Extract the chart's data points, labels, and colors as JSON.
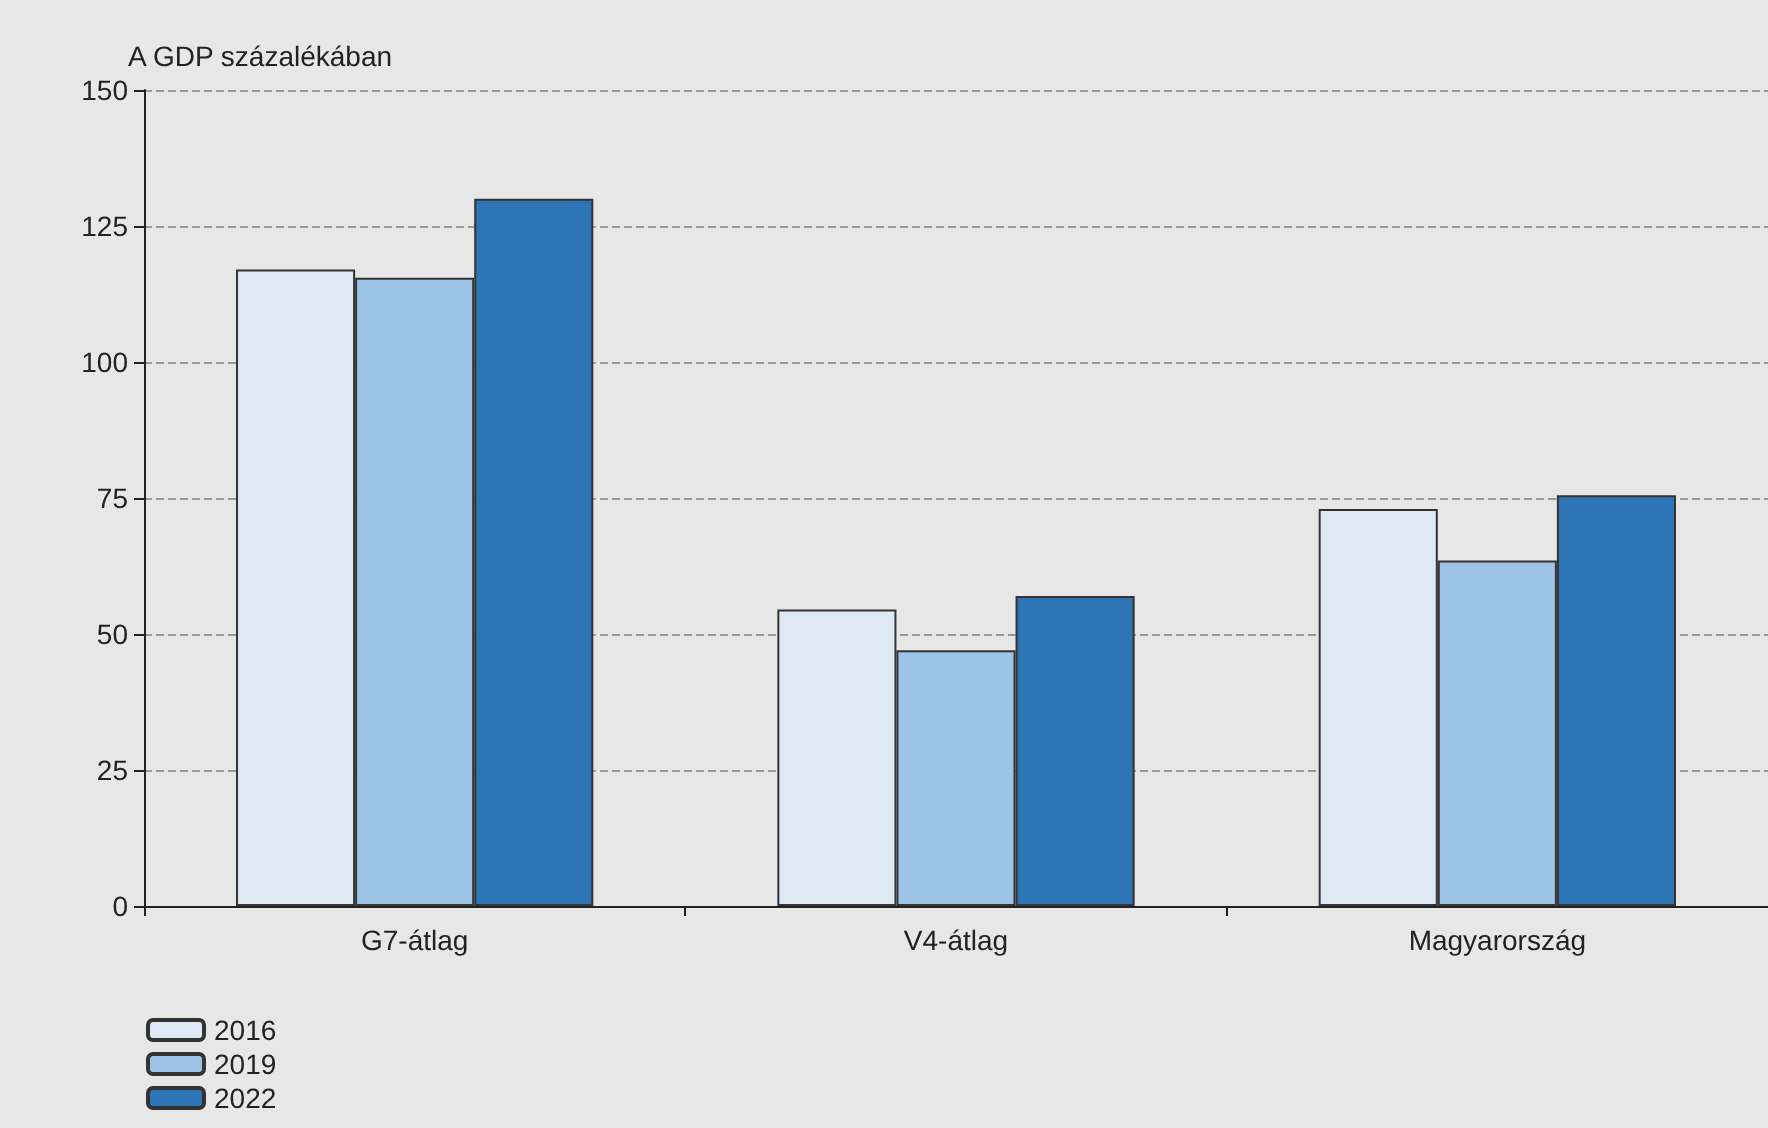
{
  "chart_data": {
    "type": "bar",
    "ylabel": "A GDP százalékában",
    "categories": [
      "G7-átlag",
      "V4-átlag",
      "Magyarország"
    ],
    "series": [
      {
        "name": "2016",
        "color": "#ddeaf6",
        "values": [
          117,
          54.5,
          73
        ]
      },
      {
        "name": "2019",
        "color": "#9dc3e6",
        "values": [
          115.5,
          47,
          63.5
        ]
      },
      {
        "name": "2022",
        "color": "#2e75b6",
        "values": [
          130,
          57,
          75.5
        ]
      }
    ],
    "ylim": [
      0,
      150
    ],
    "yticks": [
      0,
      25,
      50,
      75,
      100,
      125,
      150
    ],
    "grid": "y",
    "legend": "bottom left"
  }
}
